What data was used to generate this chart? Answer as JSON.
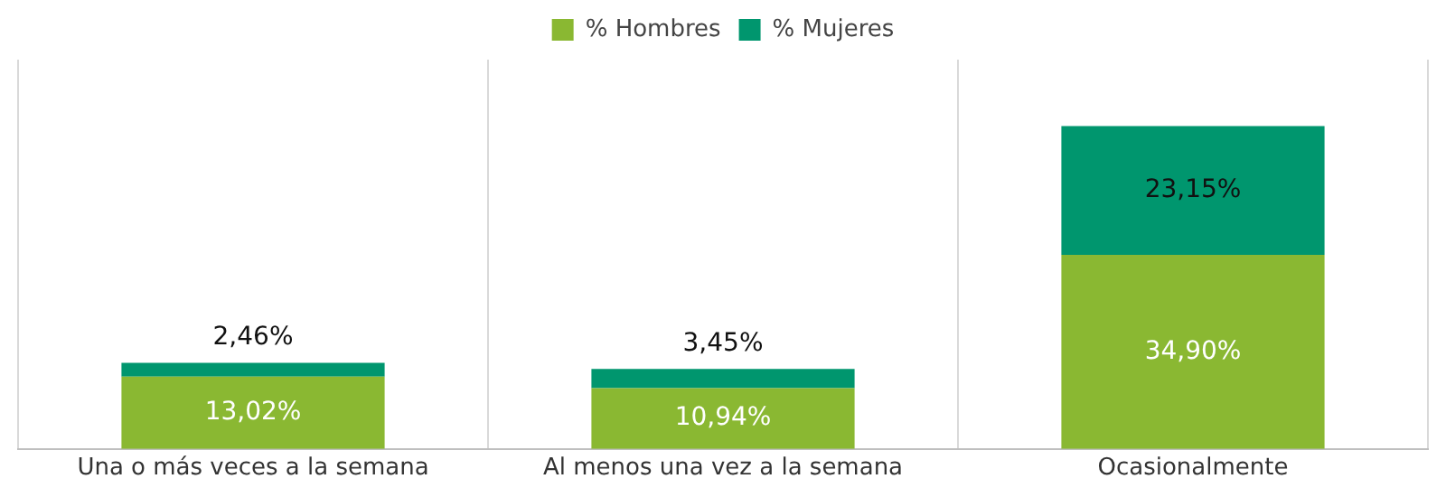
{
  "chart_data": {
    "type": "bar",
    "stacked": true,
    "grid": "x",
    "legend": "top",
    "categories": [
      "Una o más veces a la semana",
      "Al menos una vez a la semana",
      "Ocasionalmente"
    ],
    "series": [
      {
        "name": "% Hombres",
        "color": "#8ab832",
        "values": [
          13.02,
          10.94,
          34.9
        ],
        "value_labels": [
          "13,02%",
          "10,94%",
          "34,90%"
        ]
      },
      {
        "name": "% Mujeres",
        "color": "#00966e",
        "values": [
          2.46,
          3.45,
          23.15
        ],
        "value_labels": [
          "2,46%",
          "3,45%",
          "23,15%"
        ]
      }
    ]
  }
}
